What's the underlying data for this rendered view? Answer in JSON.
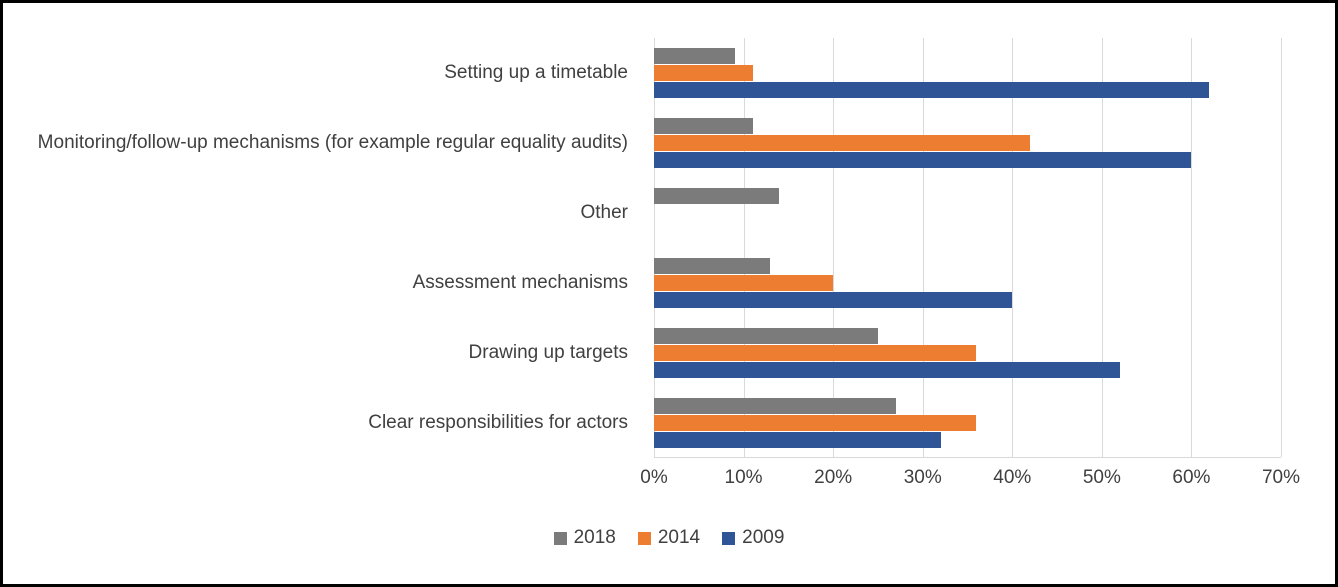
{
  "chart_data": {
    "type": "bar",
    "orientation": "horizontal",
    "title": "",
    "xlabel": "",
    "ylabel": "",
    "categories": [
      "Setting up a timetable",
      "Monitoring/follow-up mechanisms (for example regular equality audits)",
      "Other",
      "Assessment mechanisms",
      "Drawing up targets",
      "Clear responsibilities for actors"
    ],
    "series": [
      {
        "name": "2018",
        "color": "#7b7b7b",
        "values": [
          9,
          11,
          14,
          13,
          25,
          27
        ]
      },
      {
        "name": "2014",
        "color": "#ed7d31",
        "values": [
          11,
          42,
          0,
          20,
          36,
          36
        ]
      },
      {
        "name": "2009",
        "color": "#2f5597",
        "values": [
          62,
          60,
          0,
          40,
          52,
          32
        ]
      }
    ],
    "xlim": [
      0,
      70
    ],
    "x_tick_step": 10,
    "x_tick_labels": [
      "0%",
      "10%",
      "20%",
      "30%",
      "40%",
      "50%",
      "60%",
      "70%"
    ],
    "grid": true,
    "grid_color": "#d9d9d9",
    "axis_text_color": "#404040",
    "legend_position": "bottom",
    "legend_order": [
      "2018",
      "2014",
      "2009"
    ]
  }
}
